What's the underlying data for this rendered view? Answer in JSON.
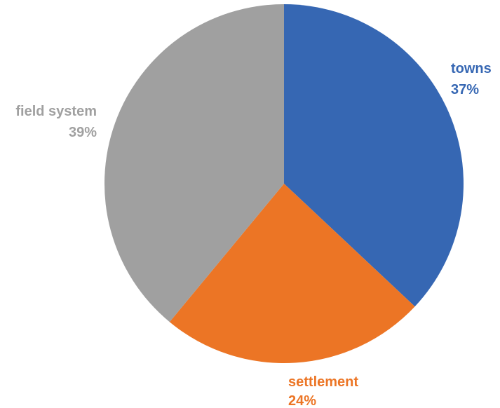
{
  "chart_data": {
    "type": "pie",
    "start_angle_deg": 0,
    "direction": "clockwise",
    "slices": [
      {
        "label": "towns",
        "value": 37,
        "value_label": "37%",
        "color": "#3667b3"
      },
      {
        "label": "settlement",
        "value": 24,
        "value_label": "24%",
        "color": "#ec7525"
      },
      {
        "label": "field system",
        "value": 39,
        "value_label": "39%",
        "color": "#a0a0a0"
      }
    ],
    "legend": "none",
    "data_labels": "outside"
  }
}
